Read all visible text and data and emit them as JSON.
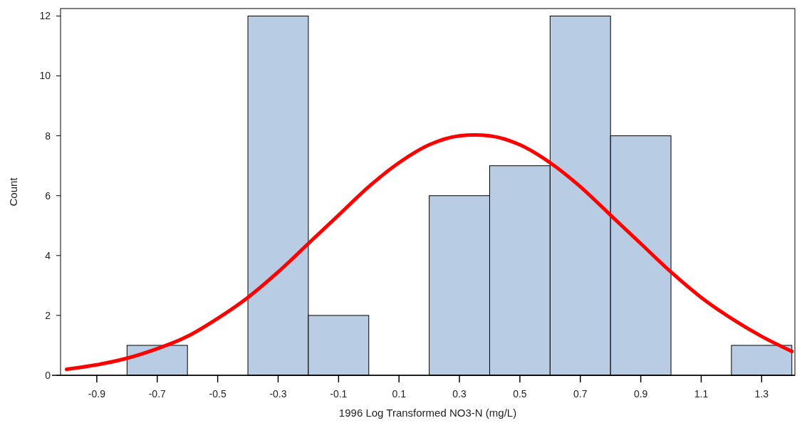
{
  "chart_data": {
    "type": "histogram",
    "xlabel": "1996 Log Transformed NO3-N (mg/L)",
    "ylabel": "Count",
    "bins": [
      -0.8,
      -0.6,
      -0.4,
      -0.2,
      0,
      0.2,
      0.4,
      0.6,
      0.8,
      1.0,
      1.2,
      1.4
    ],
    "values": [
      1,
      0,
      12,
      2,
      0,
      6,
      7,
      12,
      8,
      0,
      1
    ],
    "color": "#b8cce4",
    "series": [
      {
        "type": "line",
        "color": "#ff0000",
        "x": [
          -1.0,
          -0.9,
          -0.8,
          -0.7,
          -0.6,
          -0.5,
          -0.4,
          -0.3,
          -0.2,
          -0.1,
          0,
          0.1,
          0.2,
          0.3,
          0.35,
          0.4,
          0.5,
          0.6,
          0.7,
          0.8,
          0.9,
          1.0,
          1.1,
          1.2,
          1.3,
          1.4
        ],
        "values": [
          0.2,
          0.35,
          0.57,
          0.89,
          1.3,
          1.9,
          2.6,
          3.45,
          4.4,
          5.35,
          6.3,
          7.1,
          7.7,
          8.0,
          8.03,
          8.0,
          7.7,
          7.1,
          6.3,
          5.35,
          4.4,
          3.45,
          2.6,
          1.9,
          1.3,
          0.8
        ]
      }
    ],
    "xlim": [
      -1.02,
      1.41
    ],
    "xticks": [
      -0.9,
      -0.7,
      -0.5,
      -0.3,
      -0.1,
      0.1,
      0.3,
      0.5,
      0.7,
      0.9,
      1.1,
      1.3
    ],
    "ylim": [
      0,
      12.25
    ],
    "yticks": [
      0,
      2,
      4,
      6,
      8,
      10,
      12
    ],
    "grid": false
  }
}
